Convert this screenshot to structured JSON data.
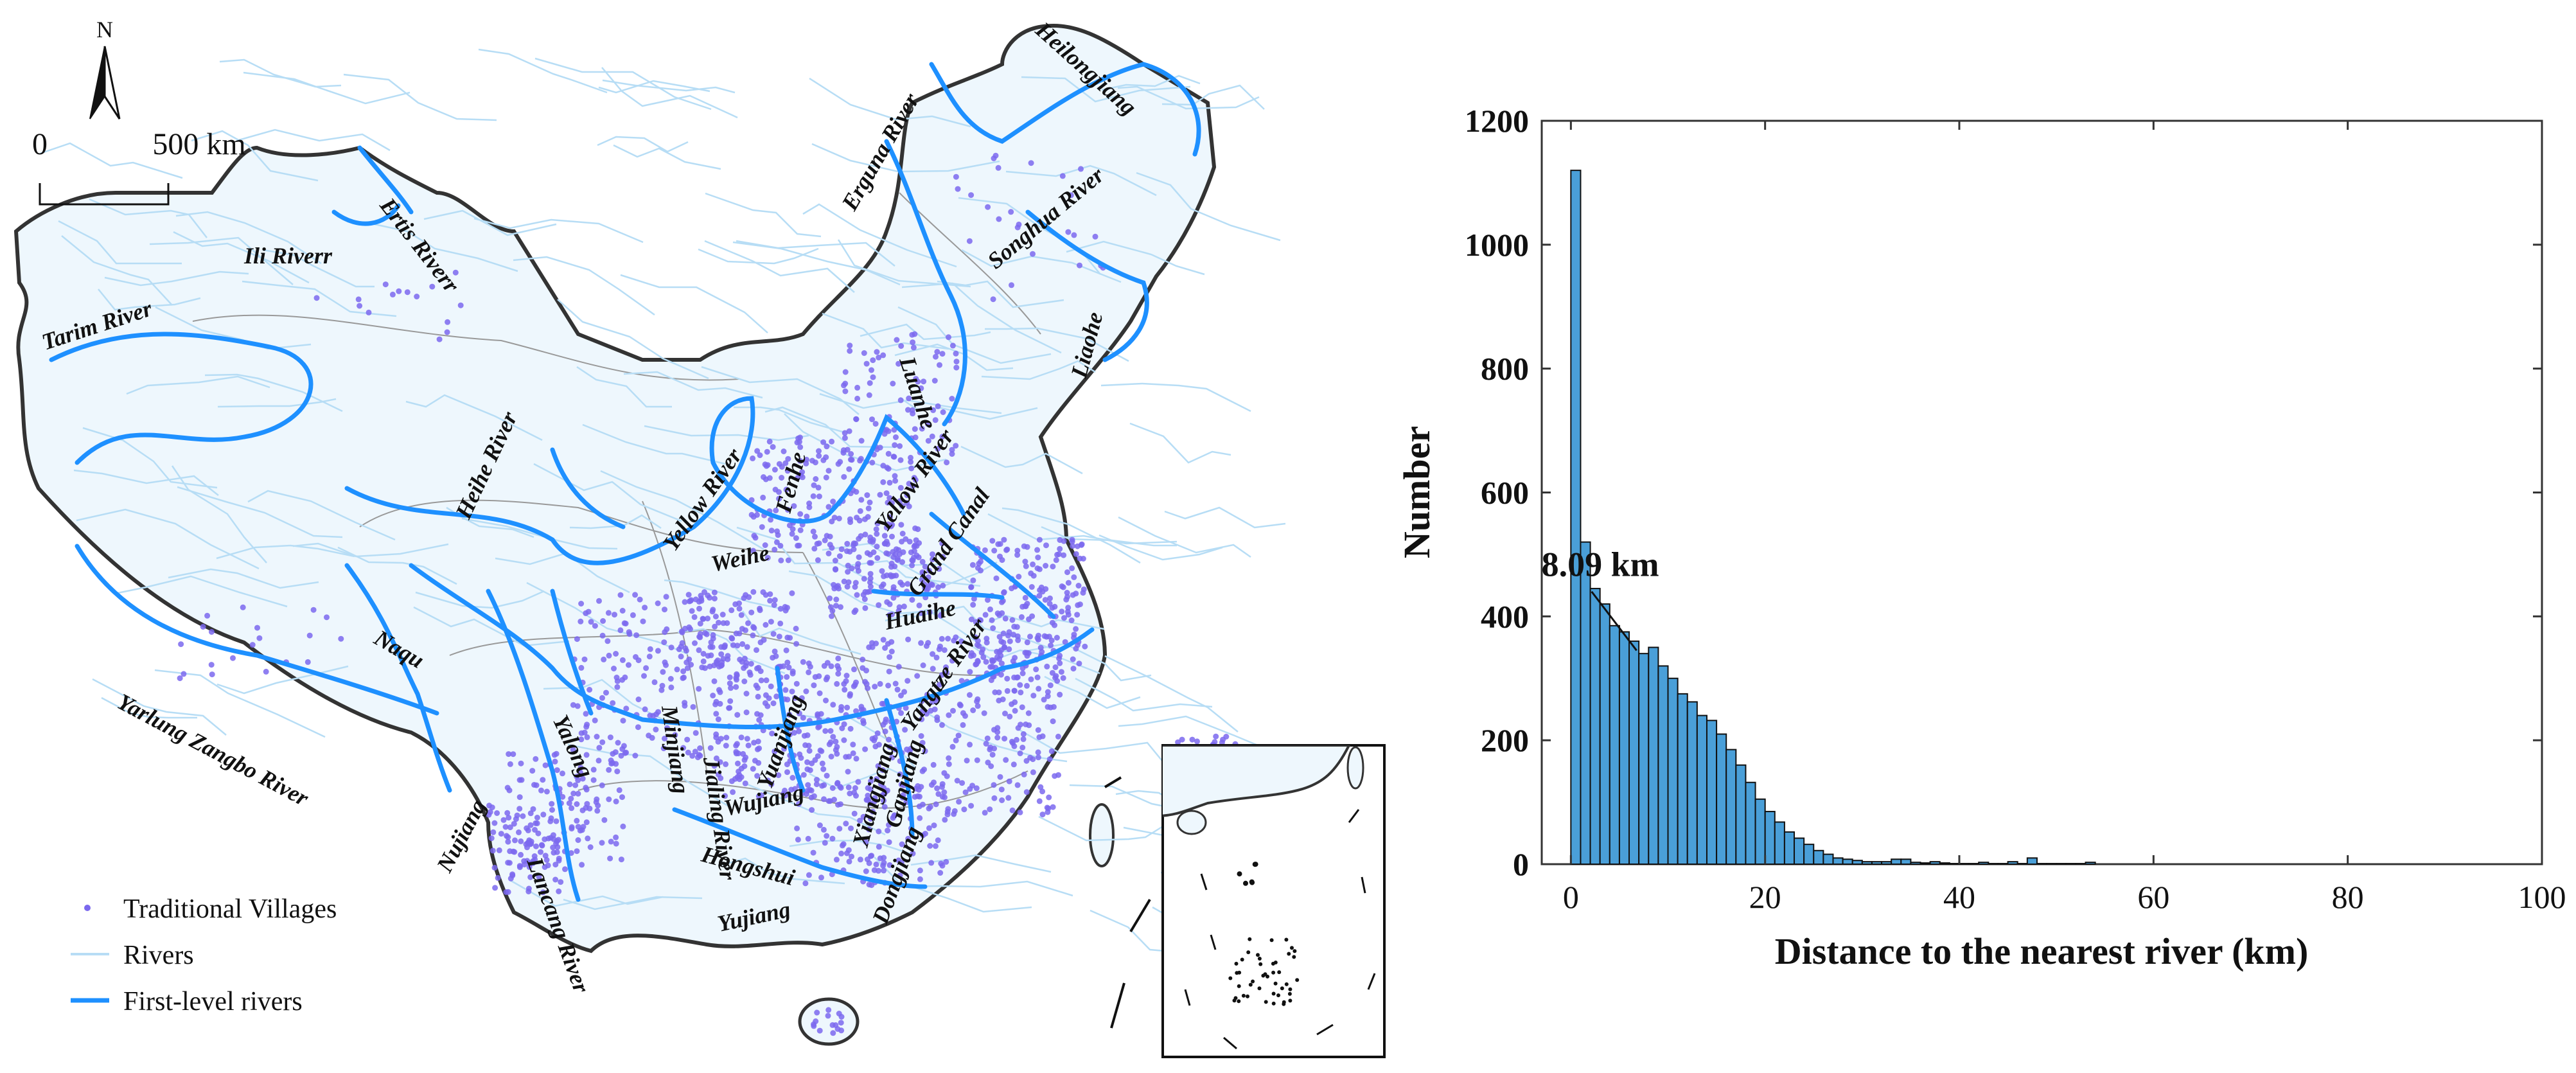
{
  "map": {
    "north_label": "N",
    "scale_start": "0",
    "scale_end": "500 km",
    "legend": [
      {
        "label": "Traditional Villages",
        "color": "#7b68ee",
        "symbol": "dot"
      },
      {
        "label": "Rivers",
        "color": "#b7ddf5",
        "symbol": "thin-line"
      },
      {
        "label": "First-level rivers",
        "color": "#1e90ff",
        "symbol": "thick-line"
      }
    ],
    "river_labels": [
      "Ertis Riverr",
      "Ili Riverr",
      "Tarim River",
      "Heihe River",
      "Yellow River",
      "Fenhe",
      "Weihe",
      "Yellow River",
      "Luanhe",
      "Grand Canal",
      "Huaihe",
      "Yangtze River",
      "Naqu",
      "Yalong",
      "Minjiang",
      "Jialing River",
      "Yuanjiang",
      "Xiangjiang",
      "Ganjiang",
      "Lancang River",
      "Wujiang",
      "Hongshui",
      "Yujiang",
      "Dongjiang",
      "Nujiang",
      "Yarlung Zangbo River",
      "Erguna River",
      "Heilongjiang",
      "Songhua River",
      "Liaohe"
    ],
    "colors": {
      "first_level": "#1e90ff",
      "rivers": "#b7ddf5",
      "villages": "#7b68ee",
      "border": "#333333",
      "basin": "#999999"
    }
  },
  "chart_data": {
    "type": "bar",
    "xlabel": "Distance to the nearest river (km)",
    "ylabel": "Number",
    "xlim": [
      -3,
      100
    ],
    "ylim": [
      0,
      1200
    ],
    "xticks": [
      0,
      20,
      40,
      60,
      80,
      100
    ],
    "yticks": [
      0,
      200,
      400,
      600,
      800,
      1000,
      1200
    ],
    "bin_width": 1,
    "bin_starts": [
      0,
      1,
      2,
      3,
      4,
      5,
      6,
      7,
      8,
      9,
      10,
      11,
      12,
      13,
      14,
      15,
      16,
      17,
      18,
      19,
      20,
      21,
      22,
      23,
      24,
      25,
      26,
      27,
      28,
      29,
      30,
      31,
      32,
      33,
      34,
      35,
      36,
      37,
      38,
      39,
      40,
      41,
      42,
      43,
      44,
      45,
      46,
      47,
      48,
      49,
      50,
      51,
      52,
      53
    ],
    "values": [
      1120,
      520,
      445,
      420,
      385,
      375,
      360,
      340,
      350,
      320,
      300,
      275,
      262,
      240,
      232,
      210,
      185,
      160,
      132,
      105,
      85,
      68,
      52,
      42,
      32,
      22,
      16,
      10,
      8,
      6,
      4,
      4,
      4,
      8,
      8,
      3,
      2,
      4,
      2,
      1,
      1,
      1,
      3,
      1,
      1,
      4,
      1,
      10,
      1,
      1,
      1,
      1,
      1,
      3
    ],
    "bar_color": "#4a9fd8",
    "annotation": {
      "text": "8.09 km",
      "x": 8.09
    }
  }
}
